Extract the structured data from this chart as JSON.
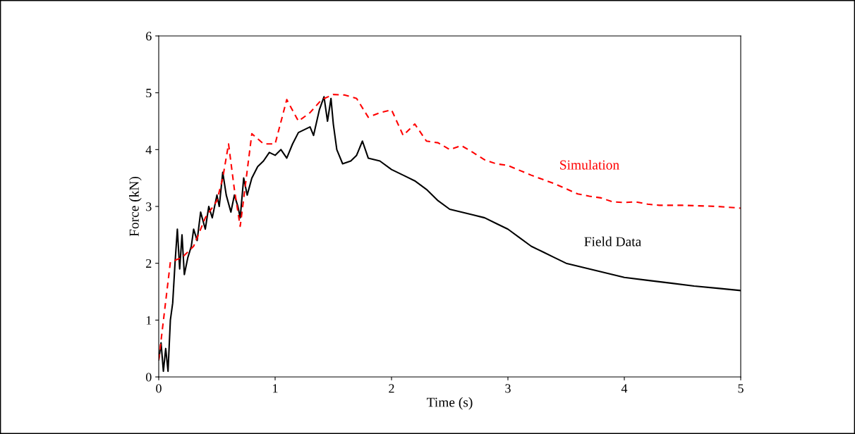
{
  "chart_data": {
    "type": "line",
    "xlabel": "Time (s)",
    "ylabel": "Force (kN)",
    "xlim": [
      0,
      5
    ],
    "ylim": [
      0,
      6
    ],
    "xticks": [
      0,
      1,
      2,
      3,
      4,
      5
    ],
    "yticks": [
      0,
      1,
      2,
      3,
      4,
      5,
      6
    ],
    "grid": false,
    "legend": false,
    "series": [
      {
        "name": "Field Data",
        "color": "#000000",
        "line_style": "solid",
        "x": [
          0,
          0.02,
          0.04,
          0.06,
          0.08,
          0.1,
          0.12,
          0.14,
          0.16,
          0.18,
          0.2,
          0.22,
          0.25,
          0.28,
          0.3,
          0.33,
          0.36,
          0.4,
          0.43,
          0.46,
          0.5,
          0.52,
          0.55,
          0.58,
          0.62,
          0.65,
          0.68,
          0.7,
          0.73,
          0.76,
          0.8,
          0.85,
          0.9,
          0.95,
          1.0,
          1.05,
          1.1,
          1.15,
          1.2,
          1.25,
          1.3,
          1.33,
          1.38,
          1.42,
          1.45,
          1.48,
          1.5,
          1.53,
          1.58,
          1.65,
          1.7,
          1.75,
          1.8,
          1.9,
          2.0,
          2.1,
          2.2,
          2.3,
          2.4,
          2.5,
          2.6,
          2.7,
          2.8,
          2.9,
          3.0,
          3.1,
          3.2,
          3.3,
          3.4,
          3.5,
          3.6,
          3.8,
          4.0,
          4.2,
          4.4,
          4.6,
          4.8,
          5.0
        ],
        "values": [
          0.3,
          0.6,
          0.1,
          0.5,
          0.1,
          1.0,
          1.3,
          2.0,
          2.6,
          1.9,
          2.5,
          1.8,
          2.1,
          2.3,
          2.6,
          2.4,
          2.9,
          2.6,
          3.0,
          2.8,
          3.2,
          3.0,
          3.6,
          3.2,
          2.9,
          3.2,
          3.0,
          2.8,
          3.5,
          3.2,
          3.5,
          3.7,
          3.8,
          3.95,
          3.9,
          4.0,
          3.85,
          4.1,
          4.3,
          4.35,
          4.4,
          4.25,
          4.7,
          4.93,
          4.5,
          4.9,
          4.45,
          4.0,
          3.75,
          3.8,
          3.9,
          4.15,
          3.85,
          3.8,
          3.65,
          3.55,
          3.45,
          3.3,
          3.1,
          2.95,
          2.9,
          2.85,
          2.8,
          2.7,
          2.6,
          2.45,
          2.3,
          2.2,
          2.1,
          2.0,
          1.95,
          1.85,
          1.75,
          1.7,
          1.65,
          1.6,
          1.56,
          1.52
        ]
      },
      {
        "name": "Simulation",
        "color": "#ff0000",
        "line_style": "dashed",
        "x": [
          0,
          0.1,
          0.2,
          0.3,
          0.4,
          0.5,
          0.55,
          0.6,
          0.65,
          0.7,
          0.8,
          0.9,
          1.0,
          1.1,
          1.2,
          1.3,
          1.4,
          1.5,
          1.6,
          1.7,
          1.8,
          1.9,
          2.0,
          2.1,
          2.2,
          2.3,
          2.4,
          2.5,
          2.6,
          2.7,
          2.8,
          2.9,
          3.0,
          3.2,
          3.4,
          3.6,
          3.7,
          3.8,
          3.9,
          4.0,
          4.1,
          4.2,
          4.3,
          4.5,
          4.8,
          5.0
        ],
        "values": [
          0.3,
          2.02,
          2.1,
          2.3,
          2.8,
          3.1,
          3.5,
          4.1,
          3.3,
          2.65,
          4.28,
          4.1,
          4.1,
          4.88,
          4.5,
          4.65,
          4.88,
          4.97,
          4.96,
          4.9,
          4.57,
          4.65,
          4.7,
          4.25,
          4.45,
          4.15,
          4.12,
          4.0,
          4.07,
          3.95,
          3.82,
          3.75,
          3.72,
          3.55,
          3.4,
          3.22,
          3.18,
          3.15,
          3.08,
          3.07,
          3.08,
          3.04,
          3.02,
          3.02,
          3.0,
          2.97
        ]
      }
    ]
  }
}
